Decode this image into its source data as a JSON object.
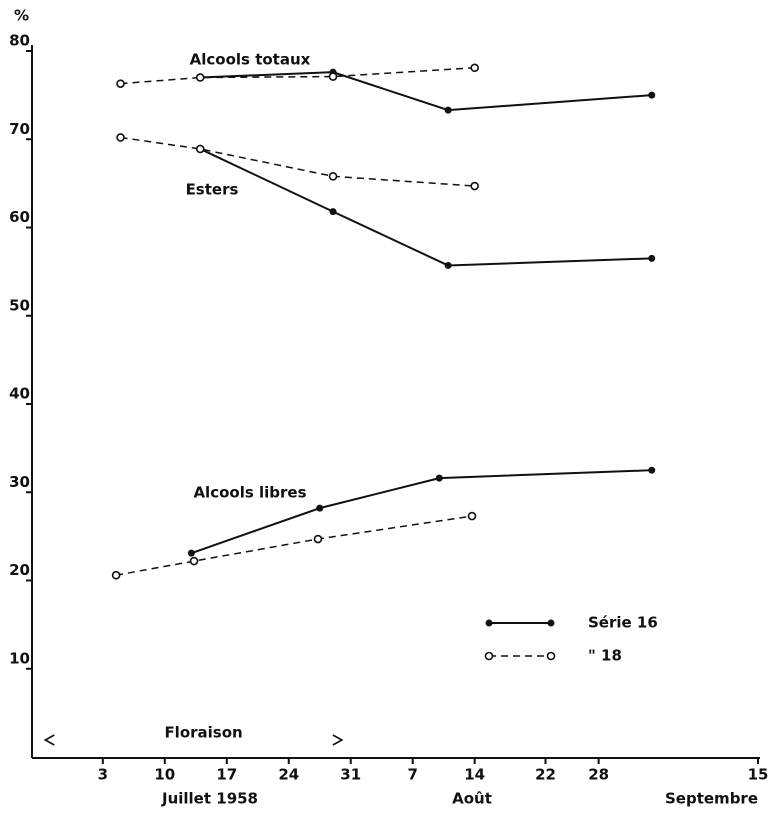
{
  "chart_data": {
    "type": "line",
    "y_label": "%",
    "ylim": [
      0,
      80
    ],
    "yticks": [
      10,
      20,
      30,
      40,
      50,
      60,
      70,
      80
    ],
    "xlim": [
      -5,
      77
    ],
    "xticks": [
      3,
      10,
      17,
      24,
      31,
      {
        "value": 38,
        "label": "7"
      },
      {
        "value": 45,
        "label": "14"
      },
      {
        "value": 53,
        "label": "22"
      },
      {
        "value": 59,
        "label": "28"
      },
      {
        "value": 77,
        "label": "15"
      }
    ],
    "month_labels": [
      "Juillet 1958",
      "Août",
      "Septembre"
    ],
    "series": [
      {
        "name": "Série 16",
        "color": "#111111",
        "marker": "filled",
        "dashed": false
      },
      {
        "name": "\"  18",
        "color": "#111111",
        "marker": "open",
        "dashed": true
      }
    ],
    "groups": [
      {
        "label": "Alcools totaux",
        "series": [
          {
            "x": [
              14,
              29,
              42,
              65
            ],
            "values": [
              77.0,
              77.6,
              73.3,
              75.0
            ]
          },
          {
            "x": [
              5,
              14,
              29,
              45
            ],
            "values": [
              76.3,
              77.0,
              77.1,
              78.1
            ]
          }
        ]
      },
      {
        "label": "Esters",
        "series": [
          {
            "x": [
              14,
              29,
              42,
              65
            ],
            "values": [
              68.9,
              61.8,
              55.7,
              56.5
            ]
          },
          {
            "x": [
              5,
              14,
              29,
              45
            ],
            "values": [
              70.2,
              68.9,
              65.8,
              64.7
            ]
          }
        ]
      },
      {
        "label": "Alcools libres",
        "series": [
          {
            "x": [
              13,
              27.5,
              41,
              65
            ],
            "values": [
              23.1,
              28.2,
              31.6,
              32.5
            ]
          },
          {
            "x": [
              4.5,
              13.3,
              27.3,
              44.7
            ],
            "values": [
              20.6,
              22.2,
              24.7,
              27.3
            ]
          }
        ]
      }
    ],
    "floraison": {
      "label": "Floraison",
      "x": [
        -3.5,
        30
      ]
    }
  }
}
